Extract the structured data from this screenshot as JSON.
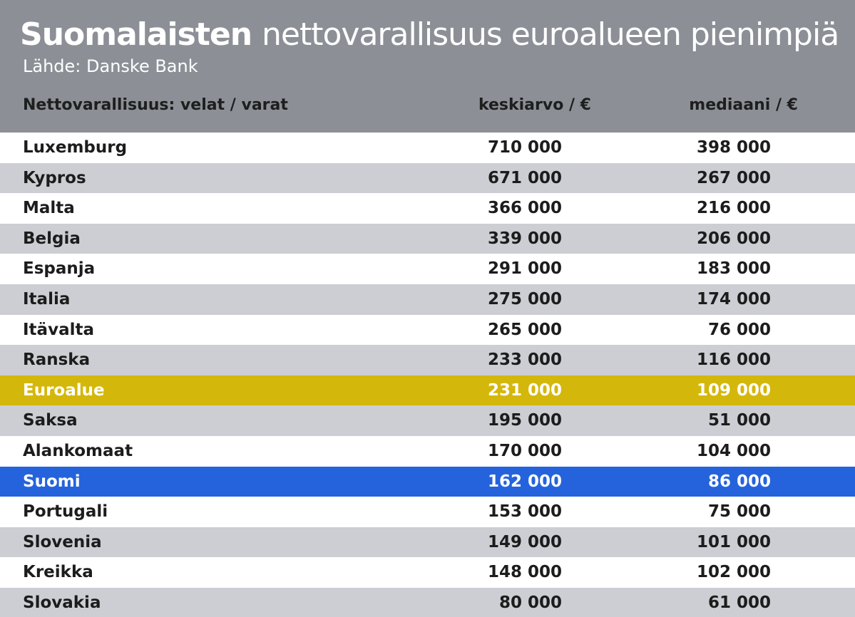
{
  "header": {
    "title_strong": "Suomalaisten",
    "title_rest": "nettovarallisuus euroalueen pienimpiä",
    "source": "Lähde: Danske Bank",
    "background_color": "#8c9096"
  },
  "chart_data": {
    "type": "table",
    "columns": [
      "Nettovarallisuus: velat / varat",
      "keskiarvo / €",
      "mediaani / €"
    ],
    "rows": [
      {
        "country": "Luxemburg",
        "mean": "710 000",
        "median": "398 000",
        "highlight": ""
      },
      {
        "country": "Kypros",
        "mean": "671 000",
        "median": "267 000",
        "highlight": ""
      },
      {
        "country": "Malta",
        "mean": "366 000",
        "median": "216 000",
        "highlight": ""
      },
      {
        "country": "Belgia",
        "mean": "339 000",
        "median": "206 000",
        "highlight": ""
      },
      {
        "country": "Espanja",
        "mean": "291 000",
        "median": "183 000",
        "highlight": ""
      },
      {
        "country": "Italia",
        "mean": "275 000",
        "median": "174 000",
        "highlight": ""
      },
      {
        "country": "Itävalta",
        "mean": "265 000",
        "median": "76 000",
        "highlight": ""
      },
      {
        "country": "Ranska",
        "mean": "233 000",
        "median": "116 000",
        "highlight": ""
      },
      {
        "country": "Euroalue",
        "mean": "231 000",
        "median": "109 000",
        "highlight": "gold"
      },
      {
        "country": "Saksa",
        "mean": "195 000",
        "median": "51 000",
        "highlight": ""
      },
      {
        "country": "Alankomaat",
        "mean": "170 000",
        "median": "104 000",
        "highlight": ""
      },
      {
        "country": "Suomi",
        "mean": "162 000",
        "median": "86 000",
        "highlight": "blue"
      },
      {
        "country": "Portugali",
        "mean": "153 000",
        "median": "75 000",
        "highlight": ""
      },
      {
        "country": "Slovenia",
        "mean": "149 000",
        "median": "101 000",
        "highlight": ""
      },
      {
        "country": "Kreikka",
        "mean": "148 000",
        "median": "102 000",
        "highlight": ""
      },
      {
        "country": "Slovakia",
        "mean": "80 000",
        "median": "61 000",
        "highlight": ""
      }
    ],
    "colors": {
      "row_white": "#ffffff",
      "row_gray": "#ccced3",
      "highlight_gold": "#d4b70b",
      "highlight_blue": "#2563dc"
    }
  }
}
